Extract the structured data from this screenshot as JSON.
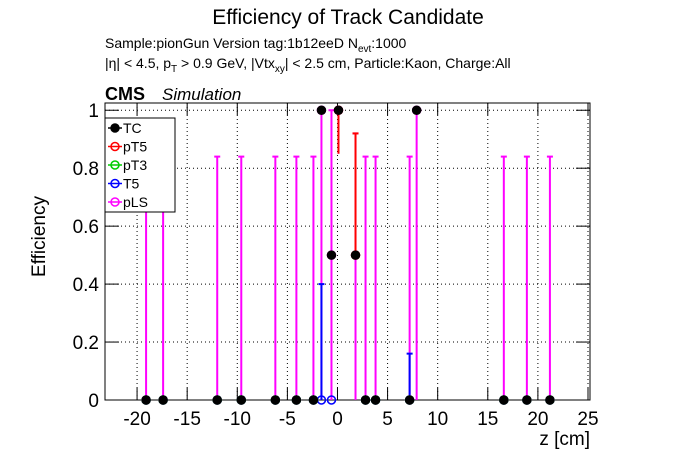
{
  "chart_data": {
    "type": "scatter",
    "title": "Efficiency of Track Candidate",
    "subtitle_1": [
      "Sample:pionGun   Version tag:1b12eeD  N",
      "evt",
      ":1000"
    ],
    "subtitle_2": [
      "|η| < 4.5, p",
      "T",
      " > 0.9 GeV, |Vtx",
      "xy",
      "| < 2.5 cm, Particle:Kaon, Charge:All"
    ],
    "cms_label": "CMS",
    "sim_label": "Simulation",
    "x_label": "z [cm]",
    "y_label": "Efficiency",
    "xlim": [
      -23.2,
      25.2
    ],
    "ylim": [
      0,
      1.025
    ],
    "xticks": [
      -20,
      -15,
      -10,
      -5,
      0,
      5,
      10,
      15,
      20,
      25
    ],
    "yticks": [
      0,
      0.2,
      0.4,
      0.6,
      0.8,
      1
    ],
    "grid": true,
    "legend": "upper left",
    "x": [
      -19.1,
      -17.4,
      -12,
      -9.6,
      -6.2,
      -4.1,
      -2.4,
      -1.6,
      -0.6,
      0.1,
      1.8,
      2.8,
      3.8,
      7.2,
      7.9,
      16.6,
      18.9,
      21.2
    ],
    "series": [
      {
        "name": "TC",
        "color": "#000000",
        "values": [
          0,
          0,
          0,
          0,
          0,
          0,
          0,
          1,
          0.5,
          1,
          0.5,
          0,
          0,
          0,
          1,
          0,
          0,
          0
        ]
      },
      {
        "name": "pT5",
        "color": "#ff0000",
        "values": [
          null,
          null,
          null,
          null,
          null,
          null,
          null,
          null,
          null,
          1,
          0.5,
          null,
          null,
          null,
          null,
          null,
          null,
          null
        ],
        "err_low": [
          null,
          null,
          null,
          null,
          null,
          null,
          null,
          null,
          null,
          0.15,
          null,
          null,
          null,
          null,
          null,
          null,
          null,
          null
        ],
        "err_high": [
          null,
          null,
          null,
          null,
          null,
          null,
          null,
          null,
          null,
          null,
          0.42,
          null,
          null,
          null,
          null,
          null,
          null,
          null
        ]
      },
      {
        "name": "pT3",
        "color": "#00cc00",
        "values": [
          0,
          0,
          0,
          0,
          0,
          0,
          0,
          null,
          null,
          null,
          null,
          0,
          0,
          0,
          null,
          0,
          0,
          0
        ]
      },
      {
        "name": "T5",
        "color": "#0000ff",
        "values": [
          0,
          0,
          0,
          0,
          0,
          0,
          0,
          0,
          0,
          null,
          null,
          0,
          0,
          0,
          null,
          0,
          0,
          0
        ],
        "err_high": [
          null,
          null,
          null,
          null,
          null,
          null,
          null,
          0.4,
          null,
          null,
          null,
          null,
          null,
          0.16,
          null,
          null,
          null,
          null
        ]
      },
      {
        "name": "pLS",
        "color": "#ff00ff",
        "values": [
          0,
          0,
          0,
          0,
          0,
          0,
          0,
          1,
          0.5,
          1,
          0.5,
          0,
          0,
          0,
          1,
          0,
          0,
          0
        ],
        "err_low": [
          null,
          null,
          null,
          null,
          null,
          null,
          null,
          1,
          0.5,
          0.15,
          0.5,
          null,
          null,
          null,
          1,
          null,
          null,
          null
        ],
        "err_high": [
          0.84,
          0.84,
          0.84,
          0.84,
          0.84,
          0.84,
          0.84,
          null,
          0.5,
          null,
          0.42,
          0.84,
          0.84,
          0.84,
          null,
          0.84,
          0.84,
          0.84
        ]
      }
    ]
  }
}
